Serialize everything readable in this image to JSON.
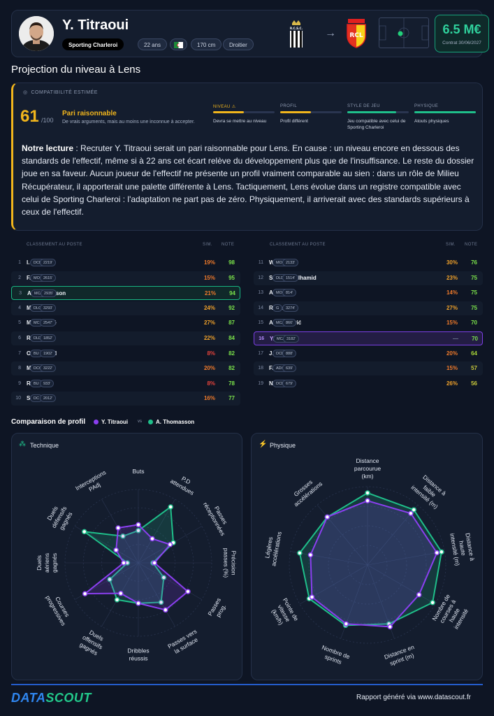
{
  "header": {
    "player_name": "Y. Titraoui",
    "club": "Sporting Charleroi",
    "age": "22 ans",
    "height": "170 cm",
    "foot": "Droitier",
    "crest_from_text": "R.C.S.C.",
    "crest_to_text": "RCL",
    "value": "6.5 M€",
    "contract": "Contrat 30/06/2027"
  },
  "projection": {
    "title": "Projection du niveau à Lens",
    "compat_label": "COMPATIBILITÉ ESTIMÉE",
    "score": "61",
    "score_max": "/100",
    "verdict": "Pari raisonnable",
    "verdict_sub": "De vrais arguments, mais au moins une inconnue à accepter.",
    "criteria": [
      {
        "title": "NIVEAU ⚠",
        "desc": "Devra se mettre au niveau",
        "level": 0.5,
        "color": "#f1b51c",
        "title_color": "#f1b51c"
      },
      {
        "title": "PROFIL",
        "desc": "Profil différent",
        "level": 0.5,
        "color": "#f1b51c",
        "title_color": "#8e9ab1"
      },
      {
        "title": "STYLE DE JEU",
        "desc": "Jeu compatible avec celui de Sporting Charleroi",
        "level": 0.8,
        "color": "#1fbf8a",
        "title_color": "#8e9ab1"
      },
      {
        "title": "PHYSIQUE",
        "desc": "Atouts physiques",
        "level": 1.0,
        "color": "#1fbf8a",
        "title_color": "#8e9ab1"
      }
    ],
    "lecture_label": "Notre lecture",
    "lecture_text": " : Recruter Y. Titraoui serait un pari raisonnable pour Lens. En cause : un niveau encore en dessous des standards de l'effectif, même si à 22 ans cet écart relève du développement plus que de l'insuffisance. Le reste du dossier joue en sa faveur. Aucun joueur de l'effectif ne présente un profil vraiment comparable au sien : dans un rôle de Milieu Récupérateur, il apporterait une palette différente à Lens. Tactiquement, Lens évolue dans un registre compatible avec celui de Sporting Charleroi : l'adaptation ne part pas de zéro. Physiquement, il arriverait avec des standards supérieurs à ceux de l'effectif."
  },
  "ranking": {
    "col_title": "CLASSEMENT AU POSTE",
    "col_sim": "SIM.",
    "col_note": "NOTE",
    "left": [
      {
        "n": "1",
        "name": "I. Ganiou",
        "pos": "DCD/DC",
        "min": "2219'",
        "sim": "19%",
        "note": "98",
        "sim_color": "#f07a2a",
        "note_color": "#7be34a"
      },
      {
        "n": "2",
        "name": "F. Thauvin",
        "pos": "MOC/AD",
        "min": "2615'",
        "sim": "15%",
        "note": "95",
        "sim_color": "#f07a2a",
        "note_color": "#7be34a"
      },
      {
        "n": "3",
        "name": "A. Thomasson",
        "pos": "MC/MC",
        "min": "2935'",
        "sim": "21%",
        "note": "94",
        "sim_color": "#f07a2a",
        "note_color": "#7be34a",
        "hl": "green"
      },
      {
        "n": "4",
        "name": "M. Udol",
        "pos": "DLG/DCG",
        "min": "3293'",
        "sim": "24%",
        "note": "92",
        "sim_color": "#f0a12a",
        "note_color": "#7be34a"
      },
      {
        "n": "5",
        "name": "M. Sangaré",
        "pos": "MC",
        "min": "2547'",
        "sim": "27%",
        "note": "87",
        "sim_color": "#f0a12a",
        "note_color": "#7be34a"
      },
      {
        "n": "6",
        "name": "R. Aguilar",
        "pos": "DLD",
        "min": "1852'",
        "sim": "22%",
        "note": "84",
        "sim_color": "#f0a12a",
        "note_color": "#7be34a"
      },
      {
        "n": "7",
        "name": "O. Édouard",
        "pos": "BU",
        "min": "1902'",
        "sim": "8%",
        "note": "82",
        "sim_color": "#e5433b",
        "note_color": "#7be34a"
      },
      {
        "n": "8",
        "name": "M. Sarr",
        "pos": "DCG/DC",
        "min": "3222'",
        "sim": "20%",
        "note": "82",
        "sim_color": "#f07a2a",
        "note_color": "#7be34a"
      },
      {
        "n": "9",
        "name": "R. Fofana",
        "pos": "BU",
        "min": "933'",
        "sim": "8%",
        "note": "78",
        "sim_color": "#e5433b",
        "note_color": "#7be34a"
      },
      {
        "n": "10",
        "name": "S. Baidoo",
        "pos": "DC",
        "min": "2012'",
        "sim": "16%",
        "note": "77",
        "sim_color": "#f07a2a",
        "note_color": "#7be34a"
      }
    ],
    "right": [
      {
        "n": "11",
        "name": "W. Saïd",
        "pos": "MOC/AG",
        "min": "2133'",
        "sim": "30%",
        "note": "76",
        "sim_color": "#f0a12a",
        "note_color": "#7be34a"
      },
      {
        "n": "12",
        "name": "Saud Abdulhamid",
        "pos": "DLD/DD",
        "min": "1514'",
        "sim": "23%",
        "note": "75",
        "sim_color": "#f0a12a",
        "note_color": "#7be34a"
      },
      {
        "n": "13",
        "name": "A. Sima",
        "pos": "MOC/BU",
        "min": "814'",
        "sim": "14%",
        "note": "75",
        "sim_color": "#f07a2a",
        "note_color": "#7be34a"
      },
      {
        "n": "14",
        "name": "R. Risser",
        "pos": "G",
        "min": "3274'",
        "sim": "27%",
        "note": "75",
        "sim_color": "#f0a12a",
        "note_color": "#7be34a"
      },
      {
        "n": "15",
        "name": "A. Bulatović",
        "pos": "MC/MC",
        "min": "866'",
        "sim": "15%",
        "note": "70",
        "sim_color": "#f07a2a",
        "note_color": "#7be34a"
      },
      {
        "n": "16",
        "name": "Y. Titraoui",
        "pos": "MC/MC",
        "min": "3182'",
        "sim": "—",
        "note": "70",
        "sim_color": "#6f7b93",
        "note_color": "#7be34a",
        "hl": "purple"
      },
      {
        "n": "17",
        "name": "J. Gradit",
        "pos": "DCD",
        "min": "888'",
        "sim": "20%",
        "note": "64",
        "sim_color": "#f07a2a",
        "note_color": "#a8d636"
      },
      {
        "n": "18",
        "name": "F. Sotoca",
        "pos": "AD/MOC",
        "min": "639'",
        "sim": "15%",
        "note": "57",
        "sim_color": "#f07a2a",
        "note_color": "#c9c93a"
      },
      {
        "n": "19",
        "name": "N. Čelik",
        "pos": "DCD",
        "min": "679'",
        "sim": "26%",
        "note": "56",
        "sim_color": "#f0a12a",
        "note_color": "#c9c93a"
      }
    ]
  },
  "comparison": {
    "title": "Comparaison de profil",
    "player_a": "Y. Titraoui",
    "vs": "vs",
    "player_b": "A. Thomasson",
    "color_a": "#8b3ff0",
    "color_b": "#1fbf8a"
  },
  "radar_technique": {
    "title": "Technique",
    "axes": [
      "Buts",
      "P.D attendues",
      "Passes réceptionnées",
      "Précision passes (%)",
      "Passes prog.",
      "Passes vers la surface",
      "Dribbles réussis",
      "Duels offensifs gagnés",
      "Courses progressives",
      "Duels aériens gagnés",
      "Duels défensifs gagnés",
      "Interceptions PAdj"
    ],
    "series_a": [
      0.52,
      0.38,
      0.5,
      0.22,
      0.78,
      0.74,
      0.55,
      0.48,
      0.84,
      0.2,
      0.35,
      0.55
    ],
    "series_b": [
      0.44,
      0.88,
      0.55,
      0.2,
      0.4,
      0.62,
      0.55,
      0.58,
      0.45,
      0.15,
      0.85,
      0.42
    ]
  },
  "radar_physique": {
    "title": "Physique",
    "axes": [
      "Distance parcourue (km)",
      "Distance à faible intensité (m)",
      "Distance à haute intensité (m)",
      "Nombre de courses à haute intensité",
      "Distance en sprint (m)",
      "Nombre de sprints",
      "Pointe de vitesse (km/h)",
      "Légères accélérations",
      "Grosses accélérations"
    ],
    "series_a": [
      0.82,
      0.86,
      0.9,
      0.76,
      0.84,
      0.8,
      0.82,
      0.74,
      0.8
    ],
    "series_b": [
      0.92,
      0.92,
      0.96,
      0.96,
      0.8,
      0.82,
      0.86,
      0.88,
      0.8
    ]
  },
  "footer": {
    "logo_a": "DATA",
    "logo_b": "SCOUT",
    "text": "Rapport généré via www.datascout.fr"
  }
}
